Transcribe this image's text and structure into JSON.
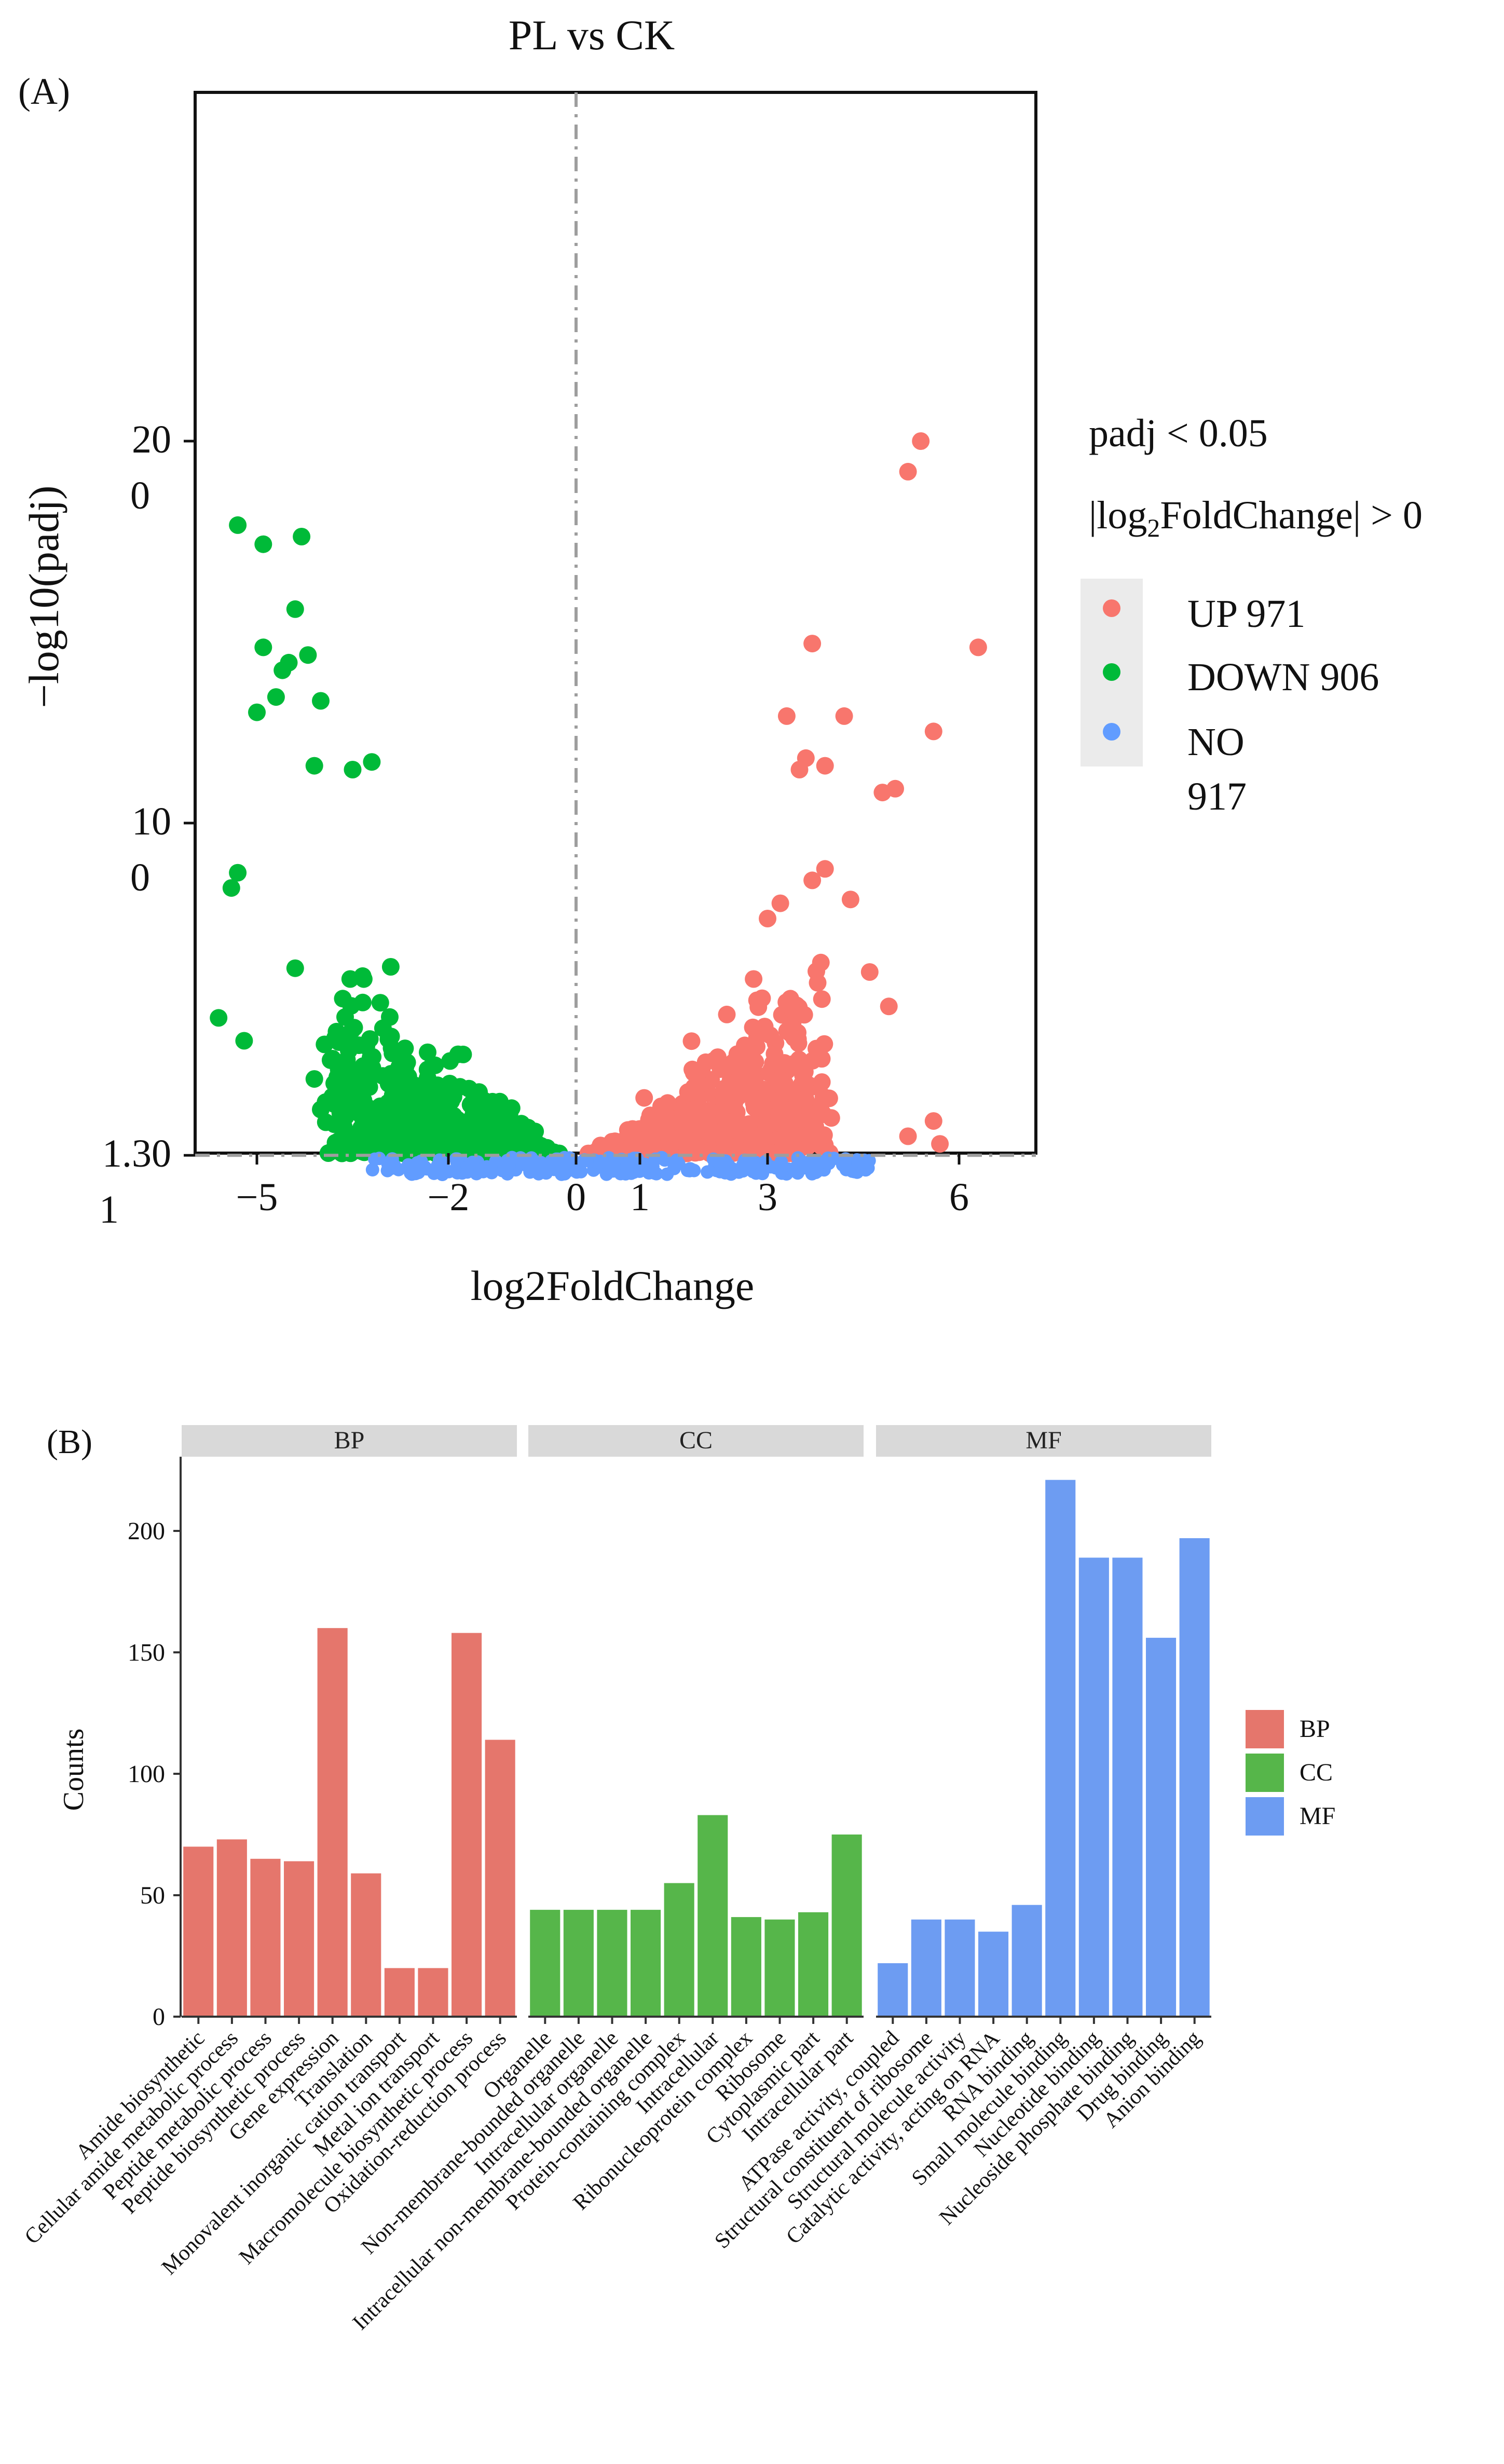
{
  "chart_data": [
    {
      "type": "scatter",
      "panel_label": "(A)",
      "title": "PL vs CK",
      "xlabel": "log2FoldChange",
      "ylabel": "−log10(padj)",
      "xlim": [
        -6,
        7.2
      ],
      "ylim": [
        0,
        28
      ],
      "x_ticks": [
        -5,
        -2,
        0,
        1,
        3,
        6
      ],
      "x_tick_labels": [
        "−5",
        "−2",
        "0",
        "1",
        "3",
        "6"
      ],
      "y_ticks": [
        1.301,
        10,
        20
      ],
      "y_tick_labels": [
        [
          "1.30",
          "1"
        ],
        [
          "10",
          "0"
        ],
        [
          "20",
          "0"
        ]
      ],
      "threshold_y": 1.301,
      "threshold_x": 0,
      "legend": {
        "title_line1": "padj < 0.05",
        "title_line2_parts": [
          "|log",
          "2",
          "FoldChange| > 0"
        ],
        "position": "right",
        "items": [
          {
            "key": "UP",
            "text": "UP 971",
            "color": "#F8766D"
          },
          {
            "key": "DOWN",
            "text": "DOWN 906",
            "color": "#00BA38"
          },
          {
            "key": "NO",
            "text_lines": [
              "NO",
              "917"
            ],
            "color": "#619CFF"
          }
        ]
      },
      "series": [
        {
          "name": "UP",
          "count": 971,
          "color": "#F8766D",
          "highlight_points": [
            [
              5.4,
              20
            ],
            [
              5.2,
              19.2
            ],
            [
              6.3,
              14.6
            ],
            [
              3.7,
              14.7
            ],
            [
              5.6,
              12.4
            ],
            [
              3.3,
              12.8
            ],
            [
              4.2,
              12.8
            ],
            [
              3.6,
              11.7
            ],
            [
              3.5,
              11.4
            ],
            [
              3.9,
              11.5
            ],
            [
              4.8,
              10.8
            ],
            [
              5.0,
              10.9
            ],
            [
              3.9,
              8.8
            ],
            [
              3.7,
              8.5
            ],
            [
              4.3,
              8.0
            ],
            [
              3.2,
              7.9
            ],
            [
              3.0,
              7.5
            ],
            [
              4.6,
              6.1
            ],
            [
              4.9,
              5.2
            ],
            [
              5.6,
              2.2
            ],
            [
              5.2,
              1.8
            ],
            [
              5.7,
              1.6
            ]
          ]
        },
        {
          "name": "DOWN",
          "count": 906,
          "color": "#00BA38",
          "highlight_points": [
            [
              -5.3,
              17.8
            ],
            [
              -4.9,
              17.3
            ],
            [
              -4.3,
              17.5
            ],
            [
              -4.4,
              15.6
            ],
            [
              -4.9,
              14.6
            ],
            [
              -4.6,
              14.0
            ],
            [
              -4.5,
              14.2
            ],
            [
              -4.2,
              14.4
            ],
            [
              -4.0,
              13.2
            ],
            [
              -5.0,
              12.9
            ],
            [
              -4.7,
              13.3
            ],
            [
              -4.1,
              11.5
            ],
            [
              -3.5,
              11.4
            ],
            [
              -3.2,
              11.6
            ],
            [
              -5.3,
              8.7
            ],
            [
              -5.4,
              8.3
            ],
            [
              -4.4,
              6.2
            ],
            [
              -5.6,
              4.9
            ],
            [
              -5.2,
              4.3
            ],
            [
              -4.1,
              3.3
            ],
            [
              -3.3,
              2.0
            ],
            [
              -4.0,
              2.5
            ]
          ]
        },
        {
          "name": "NO",
          "count": 917,
          "color": "#619CFF"
        }
      ]
    },
    {
      "type": "bar",
      "panel_label": "(B)",
      "ylabel": "Counts",
      "ylim": [
        0,
        230
      ],
      "y_ticks": [
        0,
        50,
        100,
        150,
        200
      ],
      "facets": [
        {
          "name": "BP",
          "color": "#E5766C",
          "categories": [
            "Amide biosynthetic",
            "Cellular amide metabolic process",
            "Peptide metabolic process",
            "Peptide biosynthetic process",
            "Gene expression",
            "Translation",
            "Monovalent inorganic cation transport",
            "Metal ion transport",
            "Macromolecule biosynthetic process",
            "Oxidation-reduction process"
          ],
          "values": [
            70,
            73,
            65,
            64,
            160,
            59,
            20,
            20,
            158,
            114
          ]
        },
        {
          "name": "CC",
          "color": "#56B64A",
          "categories": [
            "Organelle",
            "Non-membrane-bounded organelle",
            "Intracellular organelle",
            "Intracellular non-membrane-bounded organelle",
            "Protein-containing complex",
            "Intracellular",
            "Ribonucleoprotein complex",
            "Ribosome",
            "Cytoplasmic part",
            "Intracellular part"
          ],
          "values": [
            44,
            44,
            44,
            44,
            55,
            83,
            41,
            40,
            43,
            75
          ]
        },
        {
          "name": "MF",
          "color": "#6D9CF2",
          "categories": [
            "ATPase activity, coupled",
            "Structural constituent of ribosome",
            "Structural molecule activity",
            "Catalytic activity, acting on RNA",
            "RNA binding",
            "Small molecule binding",
            "Nucleotide binding",
            "Nucleoside phosphate binding",
            "Drug binding",
            "Anion binding"
          ],
          "values": [
            22,
            40,
            40,
            35,
            46,
            221,
            189,
            189,
            156,
            197
          ]
        }
      ],
      "legend": {
        "position": "right",
        "items": [
          {
            "label": "BP",
            "color": "#E5766C"
          },
          {
            "label": "CC",
            "color": "#56B64A"
          },
          {
            "label": "MF",
            "color": "#6D9CF2"
          }
        ]
      }
    }
  ]
}
